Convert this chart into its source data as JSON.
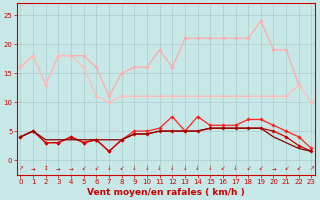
{
  "background_color": "#c8e8e8",
  "grid_color": "#aacccc",
  "xlabel": "Vent moyen/en rafales ( km/h )",
  "xlabel_color": "#cc0000",
  "xlabel_fontsize": 6.5,
  "tick_color": "#cc0000",
  "tick_fontsize": 5,
  "ylim": [
    -2.5,
    27
  ],
  "xlim": [
    -0.3,
    23.3
  ],
  "yticks": [
    0,
    5,
    10,
    15,
    20,
    25
  ],
  "xticks": [
    0,
    1,
    2,
    3,
    4,
    5,
    6,
    7,
    8,
    9,
    10,
    11,
    12,
    13,
    14,
    15,
    16,
    17,
    18,
    19,
    20,
    21,
    22,
    23
  ],
  "series": [
    {
      "name": "rafales_light1",
      "y": [
        16,
        18,
        13,
        18,
        18,
        18,
        16,
        11,
        15,
        16,
        16,
        19,
        16,
        21,
        21,
        21,
        21,
        21,
        21,
        24,
        19,
        19,
        13,
        null
      ],
      "color": "#ffaaaa",
      "marker": "D",
      "markersize": 1.8,
      "linewidth": 0.9
    },
    {
      "name": "rafales_light2",
      "y": [
        16,
        18,
        13,
        18,
        18,
        16,
        11,
        10,
        11,
        11,
        11,
        11,
        11,
        11,
        11,
        11,
        11,
        11,
        11,
        11,
        11,
        11,
        13,
        10
      ],
      "color": "#ffbbbb",
      "marker": "D",
      "markersize": 1.8,
      "linewidth": 0.9
    },
    {
      "name": "vent_med1",
      "y": [
        4,
        5,
        3,
        3,
        4,
        3,
        3.5,
        1.5,
        3.5,
        5,
        5,
        5.5,
        7.5,
        5,
        7.5,
        6,
        6,
        6,
        7,
        7,
        6,
        5,
        4,
        2
      ],
      "color": "#ff2222",
      "marker": "D",
      "markersize": 1.8,
      "linewidth": 0.9
    },
    {
      "name": "vent_med2",
      "y": [
        4,
        5,
        3,
        3,
        4,
        3,
        3.5,
        1.5,
        3.5,
        4.5,
        4.5,
        5,
        5,
        5,
        5,
        5.5,
        5.5,
        5.5,
        5.5,
        5.5,
        5,
        4,
        2.5,
        1.5
      ],
      "color": "#cc0000",
      "marker": "D",
      "markersize": 1.8,
      "linewidth": 0.9
    },
    {
      "name": "vent_min",
      "y": [
        4,
        5,
        3.5,
        3.5,
        3.5,
        3.5,
        3.5,
        3.5,
        3.5,
        4.5,
        4.5,
        5,
        5,
        5,
        5,
        5.5,
        5.5,
        5.5,
        5.5,
        5.5,
        4,
        3,
        2,
        1.5
      ],
      "color": "#880000",
      "marker": null,
      "markersize": 0,
      "linewidth": 0.9
    }
  ],
  "wind_arrow_color": "#cc0000",
  "wind_arrows": [
    "↗",
    "→",
    "↕",
    "→",
    "→",
    "↙",
    "↙",
    "↓",
    "↙",
    "↓",
    "↓",
    "↓",
    "↓",
    "↓",
    "↓",
    "↓",
    "↙",
    "↓",
    "↙",
    "↙",
    "→",
    "↙",
    "↙",
    "↗"
  ]
}
